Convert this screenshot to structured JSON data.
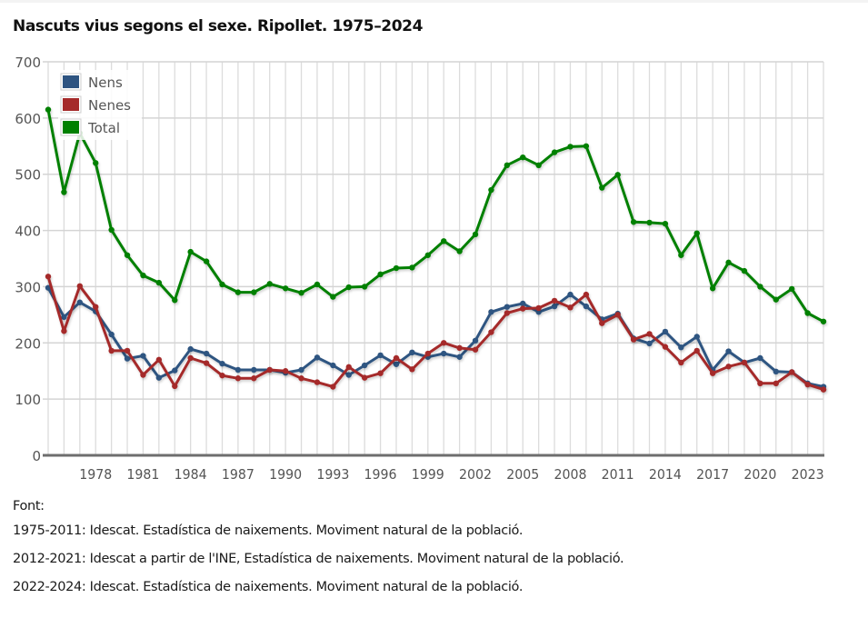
{
  "chart_data": {
    "type": "line",
    "title": "Nascuts vius segons el sexe. Ripollet. 1975–2024",
    "xlabel": "",
    "ylabel": "",
    "ylim": [
      0,
      700
    ],
    "yticks": [
      0,
      100,
      200,
      300,
      400,
      500,
      600,
      700
    ],
    "xlim": [
      1975,
      2024
    ],
    "xtick_labels": [
      "1978",
      "1981",
      "1984",
      "1987",
      "1990",
      "1993",
      "1996",
      "1999",
      "2002",
      "2005",
      "2008",
      "2011",
      "2014",
      "2017",
      "2020",
      "2023"
    ],
    "grid": true,
    "legend_position": "top-left",
    "x": [
      1975,
      1976,
      1977,
      1978,
      1979,
      1980,
      1981,
      1982,
      1983,
      1984,
      1985,
      1986,
      1987,
      1988,
      1989,
      1990,
      1991,
      1992,
      1993,
      1994,
      1995,
      1996,
      1997,
      1998,
      1999,
      2000,
      2001,
      2002,
      2003,
      2004,
      2005,
      2006,
      2007,
      2008,
      2009,
      2010,
      2011,
      2012,
      2013,
      2014,
      2015,
      2016,
      2017,
      2018,
      2019,
      2020,
      2021,
      2022,
      2023,
      2024
    ],
    "series": [
      {
        "name": "Nens",
        "color": "#2e5481",
        "values": [
          298,
          246,
          272,
          256,
          215,
          172,
          177,
          138,
          151,
          189,
          181,
          163,
          152,
          152,
          152,
          147,
          152,
          174,
          160,
          143,
          160,
          178,
          162,
          183,
          175,
          181,
          175,
          204,
          255,
          264,
          270,
          255,
          265,
          286,
          265,
          242,
          252,
          208,
          199,
          220,
          192,
          211,
          152,
          185,
          165,
          173,
          149,
          148,
          128,
          122
        ]
      },
      {
        "name": "Nenes",
        "color": "#a52a2a",
        "values": [
          318,
          221,
          301,
          264,
          186,
          186,
          143,
          170,
          123,
          173,
          164,
          142,
          137,
          137,
          152,
          150,
          137,
          130,
          122,
          157,
          138,
          146,
          173,
          153,
          181,
          200,
          191,
          188,
          219,
          253,
          261,
          262,
          275,
          263,
          286,
          235,
          250,
          206,
          216,
          193,
          165,
          186,
          146,
          158,
          165,
          128,
          128,
          148,
          126,
          117
        ]
      },
      {
        "name": "Total",
        "color": "#008000",
        "values": [
          615,
          468,
          573,
          520,
          401,
          356,
          320,
          307,
          276,
          362,
          345,
          304,
          290,
          290,
          305,
          297,
          289,
          304,
          282,
          299,
          300,
          322,
          333,
          334,
          356,
          381,
          363,
          393,
          472,
          516,
          530,
          516,
          539,
          549,
          550,
          476,
          499,
          415,
          414,
          412,
          356,
          395,
          297,
          343,
          328,
          300,
          277,
          296,
          253,
          238
        ]
      }
    ]
  },
  "footer": {
    "label": "Font:",
    "sources": [
      "1975-2011: Idescat. Estadística de naixements. Moviment natural de la població.",
      "2012-2021: Idescat a partir de l'INE, Estadística de naixements. Moviment natural de la població.",
      "2022-2024: Idescat. Estadística de naixements. Moviment natural de la població."
    ]
  }
}
